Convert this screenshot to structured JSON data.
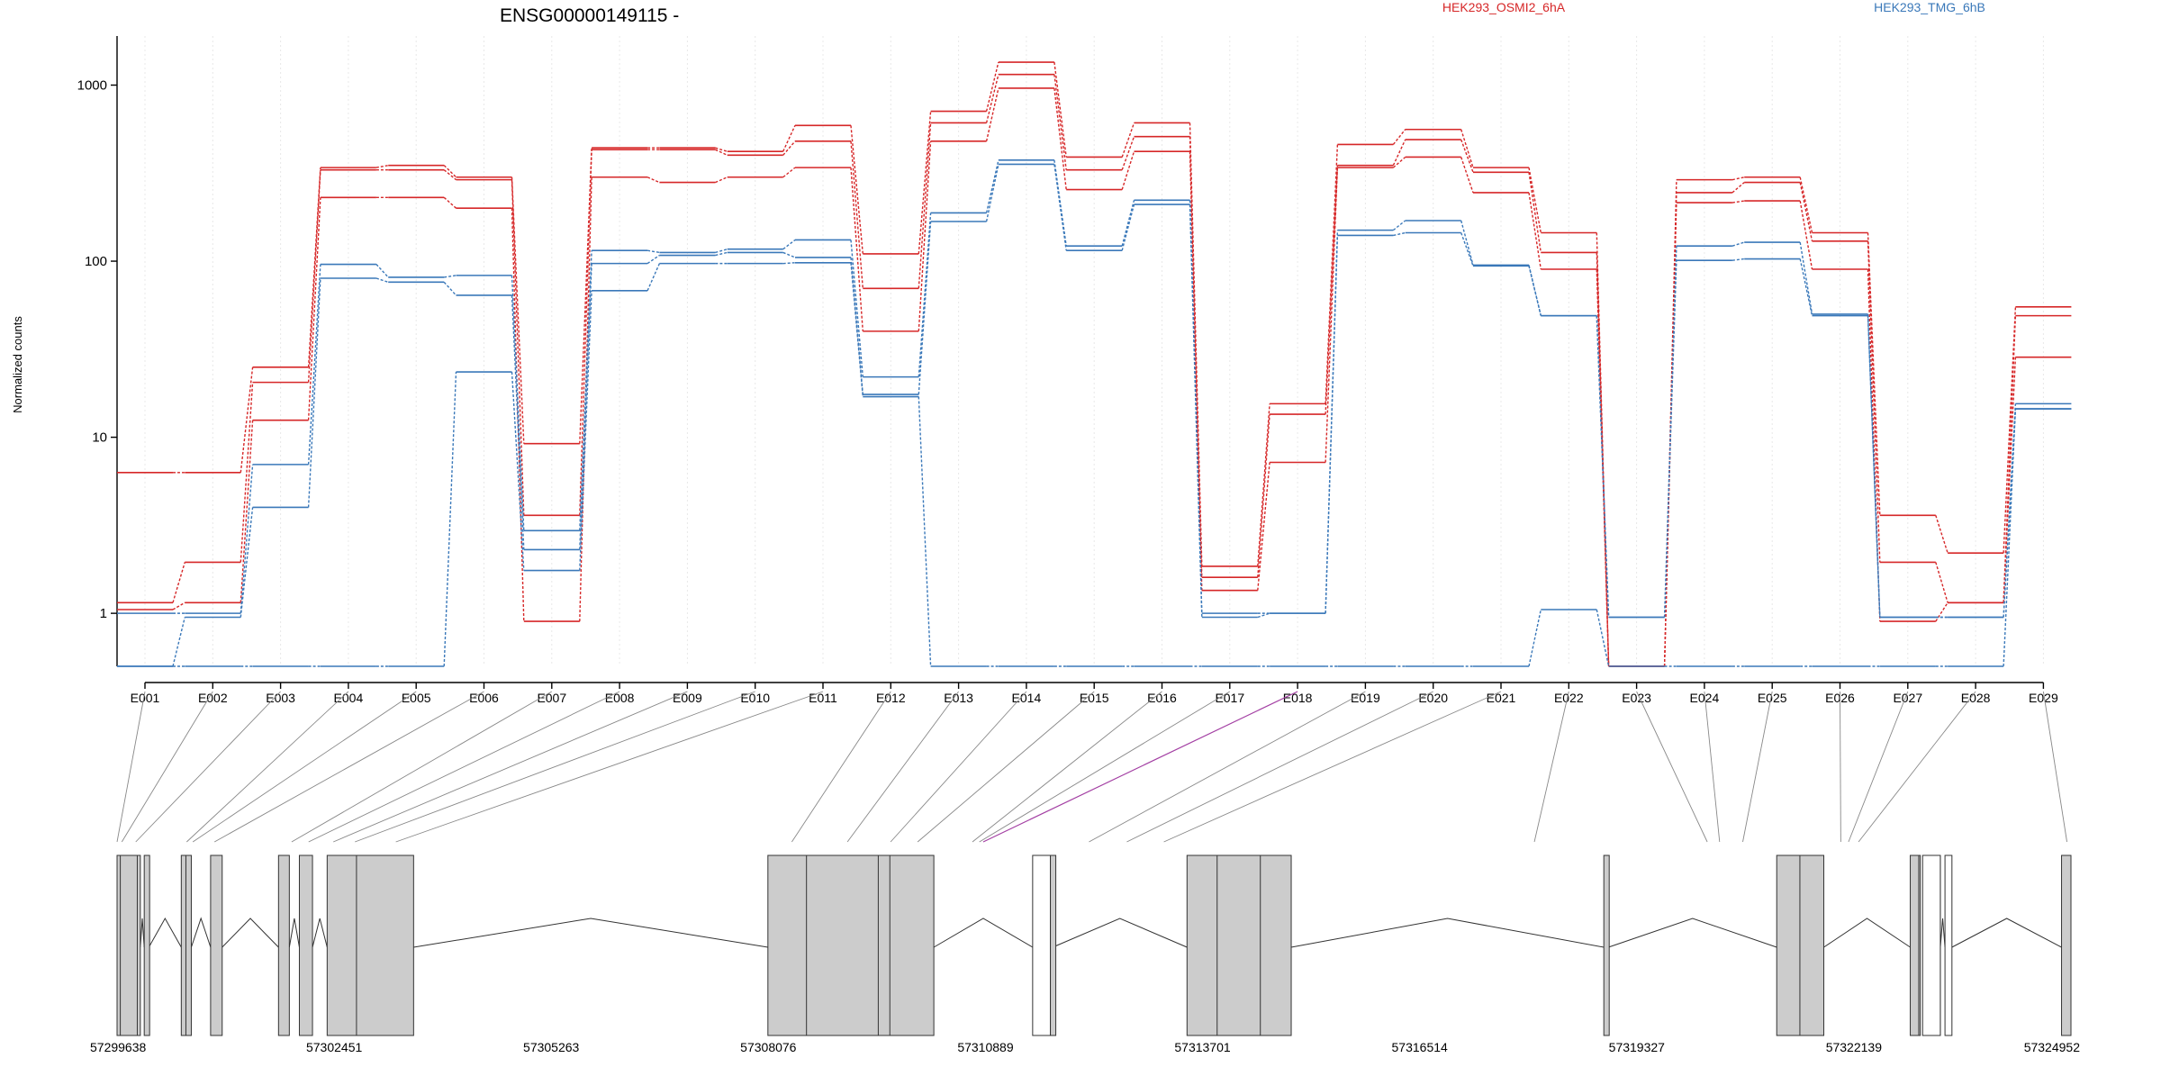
{
  "chart_data": {
    "type": "line",
    "title": "ENSG00000149115 -",
    "ylabel": "Normalized counts",
    "yscale": "log",
    "ylim": [
      0.5,
      1900
    ],
    "y_ticks": [
      1,
      10,
      100,
      1000
    ],
    "y_tick_labels": [
      "1",
      "10",
      "100",
      "1000"
    ],
    "grid": "vertical dotted at each exon",
    "legend": [
      {
        "label": "HEK293_OSMI2_6hA",
        "color": "#d62728",
        "position": "top"
      },
      {
        "label": "HEK293_TMG_6hB",
        "color": "#3a78b9",
        "position": "top-right"
      }
    ],
    "categories": [
      "E001",
      "E002",
      "E003",
      "E004",
      "E005",
      "E006",
      "E007",
      "E008",
      "E009",
      "E010",
      "E011",
      "E012",
      "E013",
      "E014",
      "E015",
      "E016",
      "E017",
      "E018",
      "E019",
      "E020",
      "E021",
      "E022",
      "E023",
      "E024",
      "E025",
      "E026",
      "E027",
      "E028",
      "E029"
    ],
    "series": [
      {
        "group": "HEK293_OSMI2_6hA",
        "color": "#d62728",
        "values": [
          6.3,
          6.3,
          25,
          340,
          350,
          300,
          9.2,
          440,
          440,
          420,
          590,
          110,
          710,
          1350,
          390,
          610,
          1.85,
          15.5,
          460,
          560,
          340,
          145,
          0.5,
          290,
          300,
          145,
          3.6,
          2.2,
          55
        ]
      },
      {
        "group": "HEK293_OSMI2_6hA",
        "color": "#d62728",
        "values": [
          1.15,
          1.95,
          20.5,
          330,
          330,
          290,
          3.6,
          430,
          430,
          400,
          480,
          70,
          610,
          1150,
          330,
          510,
          1.6,
          13.5,
          350,
          490,
          320,
          112,
          0.5,
          245,
          280,
          130,
          1.95,
          1.15,
          49
        ]
      },
      {
        "group": "HEK293_OSMI2_6hA",
        "color": "#d62728",
        "values": [
          1.05,
          1.15,
          12.5,
          230,
          230,
          200,
          0.9,
          300,
          280,
          300,
          340,
          40,
          480,
          960,
          255,
          420,
          1.35,
          7.2,
          340,
          390,
          245,
          90,
          0.5,
          215,
          220,
          90,
          0.9,
          1.15,
          28.5
        ]
      },
      {
        "group": "HEK293_TMG_6hB",
        "color": "#3a78b9",
        "values": [
          1.0,
          1.0,
          7.0,
          96,
          81,
          83,
          2.95,
          115,
          112,
          117,
          132,
          22,
          188,
          375,
          122,
          222,
          1.0,
          1.0,
          150,
          170,
          95,
          49,
          0.95,
          122,
          128,
          50,
          0.95,
          0.95,
          15.5
        ]
      },
      {
        "group": "HEK293_TMG_6hB",
        "color": "#3a78b9",
        "values": [
          0.5,
          0.95,
          4.0,
          80,
          76,
          64,
          2.3,
          97,
          108,
          112,
          105,
          17.5,
          168,
          355,
          115,
          210,
          0.95,
          1.0,
          140,
          145,
          94,
          49,
          0.95,
          101,
          103,
          49,
          0.95,
          0.95,
          14.5
        ]
      },
      {
        "group": "HEK293_TMG_6hB",
        "color": "#3a78b9",
        "values": [
          0.5,
          0.5,
          0.5,
          0.5,
          0.5,
          23.5,
          1.75,
          68,
          97,
          97,
          98,
          17,
          0.5,
          0.5,
          0.5,
          0.5,
          0.5,
          0.5,
          0.5,
          0.5,
          0.5,
          1.05,
          0.5,
          0.5,
          0.5,
          0.5,
          0.5,
          0.5,
          14.5
        ]
      }
    ],
    "genomic_axis": {
      "tick_labels": [
        "57299638",
        "57302451",
        "57305263",
        "57308076",
        "57310889",
        "57313701",
        "57316514",
        "57319327",
        "57322139",
        "57324952"
      ],
      "tick_values": [
        57299638,
        57302451,
        57305263,
        57308076,
        57310889,
        57313701,
        57316514,
        57319327,
        57322139,
        57324952
      ],
      "range": [
        57299638,
        57324952
      ]
    },
    "exon_connectors": [
      {
        "exon": "E001",
        "genomic_start": 57299638
      },
      {
        "exon": "E002",
        "genomic_start": 57299700
      },
      {
        "exon": "E003",
        "genomic_start": 57299880
      },
      {
        "exon": "E004",
        "genomic_start": 57300540
      },
      {
        "exon": "E005",
        "genomic_start": 57300620
      },
      {
        "exon": "E006",
        "genomic_start": 57300900
      },
      {
        "exon": "E007",
        "genomic_start": 57301900
      },
      {
        "exon": "E008",
        "genomic_start": 57302120
      },
      {
        "exon": "E009",
        "genomic_start": 57302440
      },
      {
        "exon": "E010",
        "genomic_start": 57302720
      },
      {
        "exon": "E011",
        "genomic_start": 57303250
      },
      {
        "exon": "E012",
        "genomic_start": 57308380
      },
      {
        "exon": "E013",
        "genomic_start": 57309100
      },
      {
        "exon": "E014",
        "genomic_start": 57309660
      },
      {
        "exon": "E015",
        "genomic_start": 57310010
      },
      {
        "exon": "E016",
        "genomic_start": 57310720
      },
      {
        "exon": "E017",
        "genomic_start": 57310810
      },
      {
        "exon": "E018",
        "genomic_start": 57310860,
        "highlight": true
      },
      {
        "exon": "E019",
        "genomic_start": 57312230
      },
      {
        "exon": "E020",
        "genomic_start": 57312720
      },
      {
        "exon": "E021",
        "genomic_start": 57313200
      },
      {
        "exon": "E022",
        "genomic_start": 57318000
      },
      {
        "exon": "E023",
        "genomic_start": 57320240
      },
      {
        "exon": "E024",
        "genomic_start": 57320400
      },
      {
        "exon": "E025",
        "genomic_start": 57320700
      },
      {
        "exon": "E026",
        "genomic_start": 57321970
      },
      {
        "exon": "E027",
        "genomic_start": 57322070
      },
      {
        "exon": "E028",
        "genomic_start": 57322200
      },
      {
        "exon": "E029",
        "genomic_start": 57324900
      }
    ],
    "gene_model": {
      "exons": [
        {
          "start": 57299638,
          "end": 57299940,
          "fill": "gray"
        },
        {
          "start": 57299990,
          "end": 57300050,
          "fill": "gray"
        },
        {
          "start": 57300470,
          "end": 57300520,
          "fill": "gray"
        },
        {
          "start": 57300530,
          "end": 57300600,
          "fill": "gray"
        },
        {
          "start": 57300850,
          "end": 57301000,
          "fill": "gray"
        },
        {
          "start": 57301730,
          "end": 57301870,
          "fill": "gray"
        },
        {
          "start": 57302000,
          "end": 57302170,
          "fill": "gray"
        },
        {
          "start": 57302360,
          "end": 57303480,
          "fill": "gray"
        },
        {
          "start": 57308070,
          "end": 57310220,
          "fill": "gray"
        },
        {
          "start": 57311500,
          "end": 57311730,
          "fill": "white"
        },
        {
          "start": 57311730,
          "end": 57311760,
          "fill": "gray"
        },
        {
          "start": 57313500,
          "end": 57314850,
          "fill": "gray"
        },
        {
          "start": 57318900,
          "end": 57318960,
          "fill": "gray"
        },
        {
          "start": 57321140,
          "end": 57321750,
          "fill": "gray"
        },
        {
          "start": 57322870,
          "end": 57323000,
          "fill": "gray"
        },
        {
          "start": 57323030,
          "end": 57323260,
          "fill": "white"
        },
        {
          "start": 57323320,
          "end": 57323410,
          "fill": "white"
        },
        {
          "start": 57324830,
          "end": 57324952,
          "fill": "gray"
        }
      ],
      "internal_lines": [
        57299680,
        57299900,
        57302740,
        57308570,
        57309500,
        57309650,
        57313890,
        57314450,
        57321440,
        57322980,
        57323260
      ]
    }
  }
}
